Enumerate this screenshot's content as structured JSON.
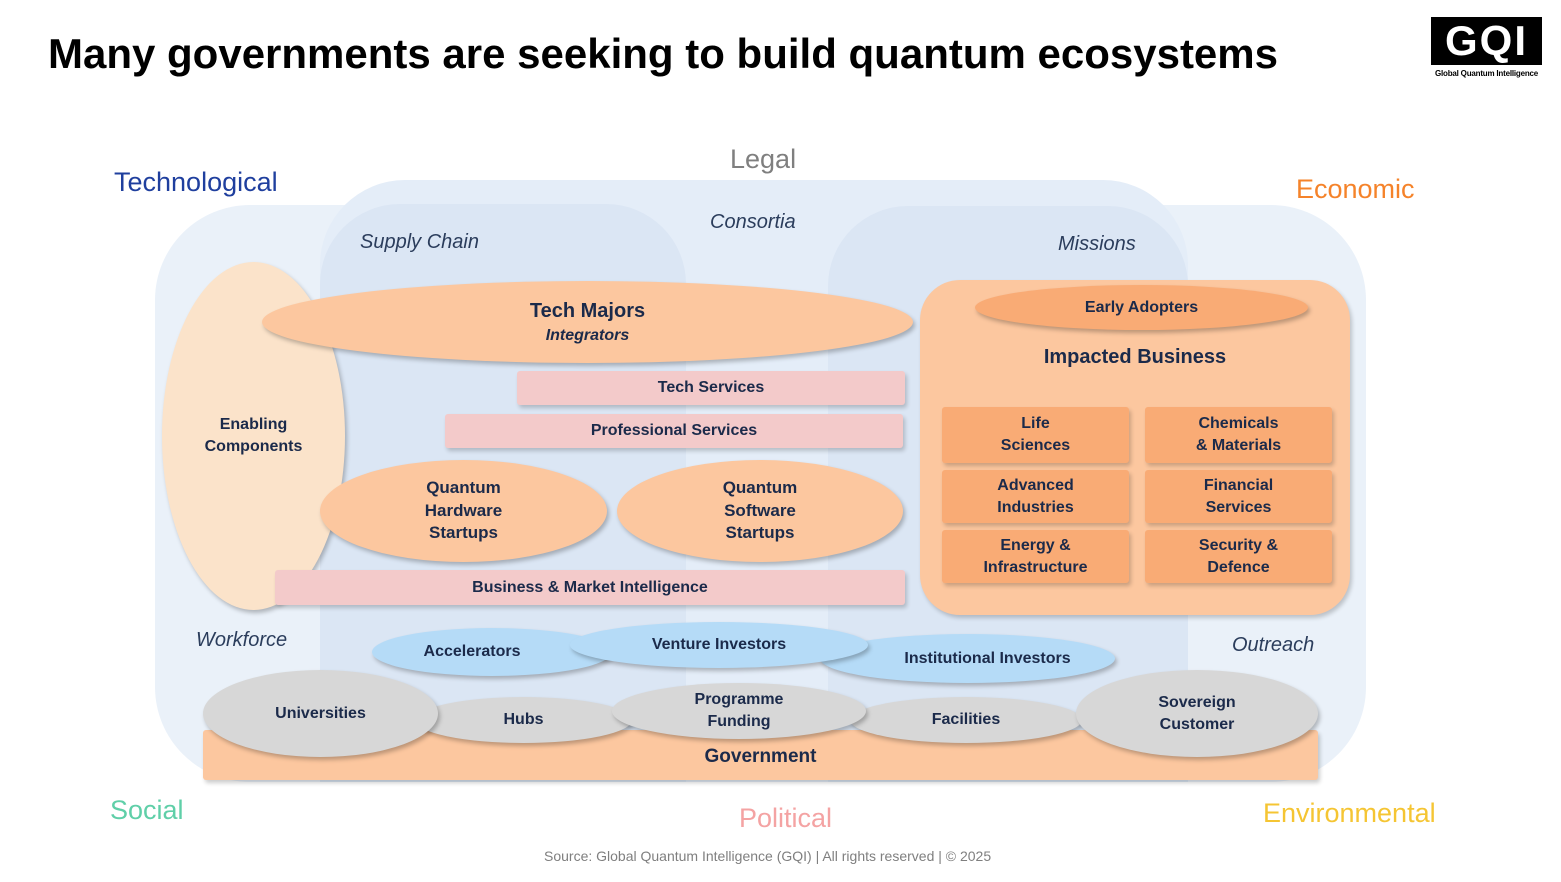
{
  "title": "Many governments are seeking to build quantum ecosystems",
  "logo": {
    "text": "GQI",
    "subtitle": "Global Quantum Intelligence"
  },
  "pestle": {
    "technological": "Technological",
    "legal": "Legal",
    "economic": "Economic",
    "social": "Social",
    "political": "Political",
    "environmental": "Environmental"
  },
  "pestle_colors": {
    "technological": "#1f3f9e",
    "legal": "#7f7f7f",
    "economic": "#f5832a",
    "social": "#5fcfa8",
    "political": "#f4a3a3",
    "environmental": "#f5c533"
  },
  "regions": {
    "supply_chain": "Supply Chain",
    "consortia": "Consortia",
    "missions": "Missions",
    "workforce": "Workforce",
    "outreach": "Outreach"
  },
  "nodes": {
    "enabling": [
      "Enabling",
      "Components"
    ],
    "tech_majors": "Tech Majors",
    "integrators": "Integrators",
    "tech_services": "Tech Services",
    "professional_services": "Professional Services",
    "hw_startups": [
      "Quantum",
      "Hardware",
      "Startups"
    ],
    "sw_startups": [
      "Quantum",
      "Software",
      "Startups"
    ],
    "bmi": "Business & Market Intelligence",
    "early_adopters": "Early Adopters",
    "impacted_business": "Impacted Business",
    "sectors": [
      [
        "Life",
        "Sciences"
      ],
      [
        "Chemicals",
        "& Materials"
      ],
      [
        "Advanced",
        "Industries"
      ],
      [
        "Financial",
        "Services"
      ],
      [
        "Energy &",
        "Infrastructure"
      ],
      [
        "Security &",
        "Defence"
      ]
    ],
    "accelerators": "Accelerators",
    "venture": "Venture Investors",
    "institutional": "Institutional Investors",
    "universities": "Universities",
    "hubs": "Hubs",
    "programme_funding": [
      "Programme",
      "Funding"
    ],
    "facilities": "Facilities",
    "sovereign": [
      "Sovereign",
      "Customer"
    ],
    "government": "Government"
  },
  "source": "Source: Global Quantum Intelligence (GQI) | All rights reserved | © 2025"
}
